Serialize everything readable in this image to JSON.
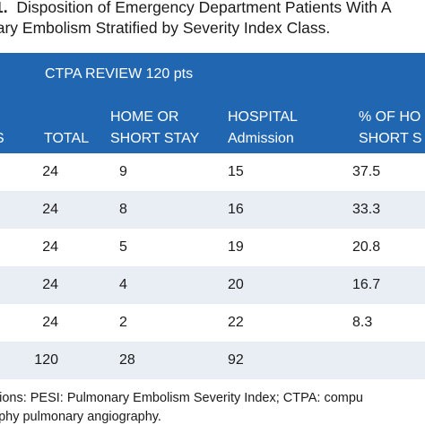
{
  "caption": {
    "label": "1.",
    "line1": "Disposition of Emergency Department Patients With A",
    "line2": "nary Embolism Stratified by Severity Index Class."
  },
  "header": {
    "group": "CTPA REVIEW 120 pts",
    "class_fragment": "S",
    "total": "TOTAL",
    "home_line1": "HOME OR",
    "home_line2": "SHORT STAY",
    "hospital_line1": "HOSPITAL",
    "hospital_line2": "Admission",
    "pct_line1": "% OF HO",
    "pct_line2": "SHORT S"
  },
  "rows": [
    {
      "total": "24",
      "home": "9",
      "hospital": "15",
      "pct": "37.5"
    },
    {
      "total": "24",
      "home": "8",
      "hospital": "16",
      "pct": "33.3"
    },
    {
      "total": "24",
      "home": "5",
      "hospital": "19",
      "pct": "20.8"
    },
    {
      "total": "24",
      "home": "4",
      "hospital": "20",
      "pct": "16.7"
    },
    {
      "total": "24",
      "home": "2",
      "hospital": "22",
      "pct": "8.3"
    },
    {
      "total": "120",
      "home": "28",
      "hospital": "92",
      "pct": ""
    }
  ],
  "footnote": {
    "line1": "ations: PESI: Pulmonary Embolism Severity Index; CTPA: compu",
    "line2": "aphy pulmonary angiography."
  },
  "colors": {
    "header_bg": "#2166b1",
    "header_text": "#ffffff",
    "row_alt_bg": "#e9eef5"
  }
}
